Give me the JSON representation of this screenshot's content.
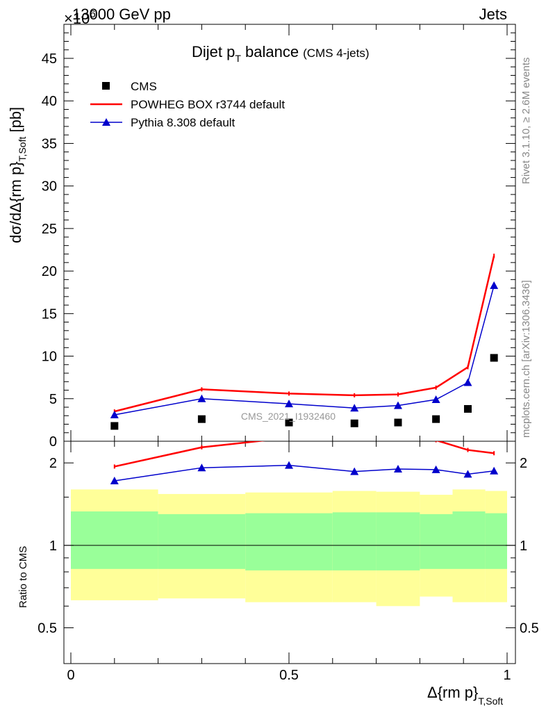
{
  "header": {
    "energy_label": "13000 GeV pp",
    "multiplier_label": "×10",
    "multiplier_exp": "6",
    "category_label": "Jets"
  },
  "plot": {
    "title_main": "Dijet p",
    "title_sub": "T",
    "title_rest": " balance",
    "title_note": "(CMS 4-jets)",
    "watermark": "CMS_2021_I1932460",
    "side_label_top": "Rivet 3.1.10, ≥ 2.6M events",
    "side_label_bottom": "mcplots.cern.ch [arXiv:1306.3436]",
    "ylabel_main": "dσ/dΔ{rm p}",
    "ylabel_sub": "T,Soft",
    "ylabel_unit": " [pb]",
    "ylabel_ratio": "Ratio to CMS",
    "xlabel_main": "Δ{rm p}",
    "xlabel_sub": "T,Soft"
  },
  "legend": {
    "cms": "CMS",
    "powheg": "POWHEG BOX r3744 default",
    "pythia": "Pythia 8.308 default"
  },
  "colors": {
    "data": "#000000",
    "powheg": "#ff0000",
    "pythia": "#0000cc",
    "band_inner": "#99ff99",
    "band_outer": "#ffff99"
  },
  "chart_data": [
    {
      "type": "scatter",
      "panel": "main",
      "xlim": [
        0,
        1
      ],
      "ylim": [
        0,
        49
      ],
      "y_multiplier": 1000000,
      "yticks": [
        0,
        5,
        10,
        15,
        20,
        25,
        30,
        35,
        40,
        45
      ],
      "xticks": [
        0,
        0.5,
        1
      ],
      "series": [
        {
          "name": "CMS",
          "marker": "square",
          "x": [
            0.1,
            0.3,
            0.5,
            0.65,
            0.75,
            0.837,
            0.91,
            0.97
          ],
          "y": [
            1.8,
            2.6,
            2.2,
            2.1,
            2.2,
            2.6,
            3.8,
            9.8
          ]
        },
        {
          "name": "POWHEG BOX r3744 default",
          "marker": "line",
          "x": [
            0.1,
            0.3,
            0.5,
            0.65,
            0.75,
            0.837,
            0.91,
            0.97
          ],
          "y": [
            3.5,
            6.1,
            5.6,
            5.4,
            5.5,
            6.3,
            8.7,
            21.8
          ]
        },
        {
          "name": "Pythia 8.308 default",
          "marker": "triangle",
          "x": [
            0.1,
            0.3,
            0.5,
            0.65,
            0.75,
            0.837,
            0.91,
            0.97
          ],
          "y": [
            3.1,
            5.0,
            4.4,
            3.9,
            4.2,
            4.9,
            6.9,
            18.3
          ]
        }
      ]
    },
    {
      "type": "line",
      "panel": "ratio",
      "xlim": [
        0,
        1
      ],
      "ylim": [
        0.37,
        2.4
      ],
      "yscale": "log",
      "yticks": [
        0.5,
        1,
        2
      ],
      "xticks": [
        0,
        0.5,
        1
      ],
      "series": [
        {
          "name": "POWHEG BOX r3744 default",
          "x": [
            0.1,
            0.3,
            0.5,
            0.65,
            0.75,
            0.837,
            0.91,
            0.97
          ],
          "y": [
            1.94,
            2.28,
            2.47,
            2.6,
            2.5,
            2.42,
            2.23,
            2.17
          ]
        },
        {
          "name": "Pythia 8.308 default",
          "x": [
            0.1,
            0.3,
            0.5,
            0.65,
            0.75,
            0.837,
            0.91,
            0.97
          ],
          "y": [
            1.72,
            1.92,
            1.96,
            1.86,
            1.9,
            1.89,
            1.82,
            1.87
          ]
        }
      ],
      "bands": {
        "edges": [
          0,
          0.2,
          0.4,
          0.6,
          0.7,
          0.8,
          0.875,
          0.95,
          1.0
        ],
        "inner_low": [
          0.82,
          0.82,
          0.81,
          0.81,
          0.81,
          0.82,
          0.82,
          0.82
        ],
        "inner_high": [
          1.33,
          1.3,
          1.31,
          1.32,
          1.32,
          1.3,
          1.33,
          1.31
        ],
        "outer_low": [
          0.63,
          0.64,
          0.62,
          0.62,
          0.6,
          0.65,
          0.62,
          0.62
        ],
        "outer_high": [
          1.6,
          1.54,
          1.56,
          1.58,
          1.57,
          1.53,
          1.6,
          1.58
        ]
      }
    }
  ]
}
